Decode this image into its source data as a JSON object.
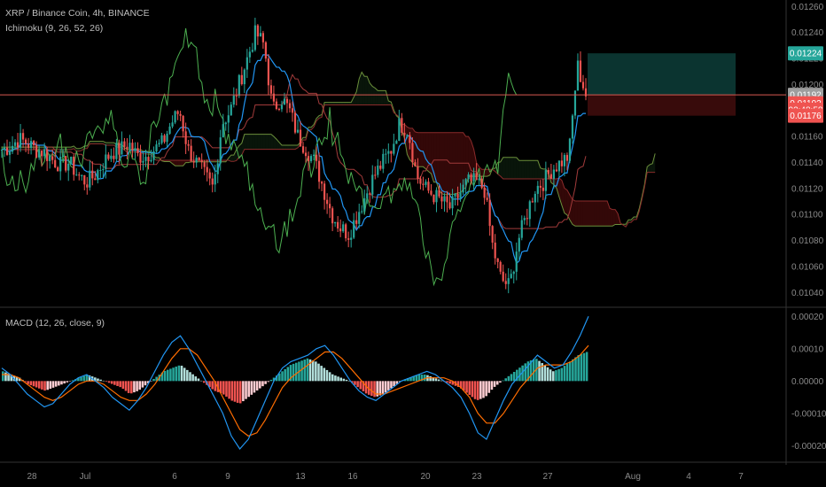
{
  "header": {
    "symbol_line": "XRP / Binance Coin, 4h, BINANCE",
    "ichimoku_label": "Ichimoku (9, 26, 52, 26)",
    "macd_label": "MACD (12, 26, close, 9)"
  },
  "colors": {
    "background": "#000000",
    "up": "#26a69a",
    "down": "#ef5350",
    "tenkan": "#2196f3",
    "kijun": "#a23b3b",
    "chikou": "#4caf50",
    "span_a": "#6b8f3b",
    "span_b": "#8b2b2b",
    "macd_line": "#2196f3",
    "signal_line": "#ff6d00",
    "position_profit": "#0c3a35",
    "position_loss": "#3b0c0c"
  },
  "price_axis": {
    "ticks": [
      "0.01260",
      "0.01240",
      "0.01220",
      "0.01200",
      "0.01180",
      "0.01160",
      "0.01140",
      "0.01120",
      "0.01100",
      "0.01080",
      "0.01060",
      "0.01040"
    ],
    "visible_ticks": [
      "0.01140",
      "0.01120",
      "0.01100",
      "0.01080",
      "0.01060",
      "0.01040"
    ],
    "badges": [
      {
        "text": "0.01224",
        "color": "#26a69a",
        "value": 0.01224
      },
      {
        "text": "0.01192",
        "color": "#9e9e9e",
        "value": 0.01192
      },
      {
        "text": "0.01192",
        "color": "#ef5350",
        "value": 0.011855
      },
      {
        "text": "02:48:58",
        "color": "#ef5350",
        "value": 0.011805
      },
      {
        "text": "0.01176",
        "color": "#ef5350",
        "value": 0.01176
      }
    ]
  },
  "macd_axis": {
    "ticks": [
      "0.00020",
      "0.00010",
      "0.00000",
      "-0.00010",
      "-0.00020"
    ]
  },
  "time_axis": {
    "labels": [
      "28",
      "Jul",
      "6",
      "9",
      "13",
      "16",
      "20",
      "23",
      "27",
      "Aug",
      "4",
      "7"
    ]
  },
  "chart_data": {
    "type": "candlestick",
    "symbol": "XRP / Binance Coin",
    "timeframe": "4h",
    "exchange": "BINANCE",
    "price_range": [
      0.0103,
      0.01265
    ],
    "current_price": 0.01192,
    "position": {
      "entry": 0.01192,
      "target": 0.01224,
      "stop": 0.01176
    },
    "price_path": [
      [
        0.01155,
        0.0115
      ],
      [
        0.0116,
        0.01152
      ],
      [
        0.0117,
        0.01158
      ],
      [
        0.01165,
        0.01155
      ],
      [
        0.0116,
        0.0115
      ],
      [
        0.01155,
        0.01148
      ],
      [
        0.0115,
        0.01142
      ],
      [
        0.01148,
        0.01138
      ],
      [
        0.01152,
        0.0114
      ],
      [
        0.0115,
        0.0113
      ],
      [
        0.01145,
        0.01125
      ],
      [
        0.0115,
        0.0113
      ],
      [
        0.0116,
        0.0114
      ],
      [
        0.01155,
        0.01148
      ],
      [
        0.0116,
        0.0115
      ],
      [
        0.0117,
        0.01155
      ],
      [
        0.0115,
        0.01145
      ],
      [
        0.0114,
        0.01145
      ],
      [
        0.01145,
        0.0115
      ],
      [
        0.0115,
        0.01155
      ],
      [
        0.0116,
        0.0117
      ],
      [
        0.01165,
        0.0118
      ],
      [
        0.0117,
        0.0115
      ],
      [
        0.0115,
        0.0114
      ],
      [
        0.0114,
        0.0113
      ],
      [
        0.0113,
        0.0112
      ],
      [
        0.0116,
        0.0117
      ],
      [
        0.0117,
        0.0118
      ],
      [
        0.0118,
        0.012
      ],
      [
        0.0119,
        0.0122
      ],
      [
        0.0121,
        0.0124
      ],
      [
        0.0122,
        0.0123
      ],
      [
        0.012,
        0.0118
      ],
      [
        0.0118,
        0.0119
      ],
      [
        0.0119,
        0.0118
      ],
      [
        0.0118,
        0.0116
      ],
      [
        0.0116,
        0.0115
      ],
      [
        0.0115,
        0.0114
      ],
      [
        0.0114,
        0.0112
      ],
      [
        0.0112,
        0.011
      ],
      [
        0.011,
        0.0109
      ],
      [
        0.0109,
        0.01085
      ],
      [
        0.01095,
        0.011
      ],
      [
        0.011,
        0.01115
      ],
      [
        0.0111,
        0.0113
      ],
      [
        0.01125,
        0.0114
      ],
      [
        0.01135,
        0.0115
      ],
      [
        0.0115,
        0.0117
      ],
      [
        0.0116,
        0.01165
      ],
      [
        0.0114,
        0.0113
      ],
      [
        0.0113,
        0.0112
      ],
      [
        0.0112,
        0.01115
      ],
      [
        0.01125,
        0.0111
      ],
      [
        0.0111,
        0.01105
      ],
      [
        0.0111,
        0.01115
      ],
      [
        0.01115,
        0.01125
      ],
      [
        0.0112,
        0.01125
      ],
      [
        0.0111,
        0.0112
      ],
      [
        0.0109,
        0.01075
      ],
      [
        0.0107,
        0.0105
      ],
      [
        0.0106,
        0.01045
      ],
      [
        0.0107,
        0.0108
      ],
      [
        0.01085,
        0.011
      ],
      [
        0.011,
        0.0112
      ],
      [
        0.01115,
        0.01125
      ],
      [
        0.0112,
        0.01135
      ],
      [
        0.0113,
        0.0114
      ],
      [
        0.01135,
        0.01145
      ],
      [
        0.0114,
        0.01215
      ],
      [
        0.012,
        0.01192
      ]
    ],
    "macd_range": [
      -0.00024,
      0.00022
    ],
    "macd_histogram": [
      3e-05,
      2e-05,
      1e-05,
      -1e-05,
      -2e-05,
      -3e-05,
      -2e-05,
      -1e-05,
      0.0,
      1e-05,
      2e-05,
      1e-05,
      0.0,
      -1e-05,
      -2e-05,
      -4e-05,
      -3e-05,
      -1e-05,
      1e-05,
      3e-05,
      4e-05,
      5e-05,
      3e-05,
      1e-05,
      -1e-05,
      -3e-05,
      -4e-05,
      -6e-05,
      -7e-05,
      -5e-05,
      -3e-05,
      -1e-05,
      1e-05,
      3e-05,
      5e-05,
      6e-05,
      7e-05,
      6e-05,
      4e-05,
      2e-05,
      1e-05,
      0.0,
      -2e-05,
      -4e-05,
      -5e-05,
      -4e-05,
      -2e-05,
      0.0,
      1e-05,
      2e-05,
      2e-05,
      1e-05,
      0.0,
      -1e-05,
      -2e-05,
      -4e-05,
      -6e-05,
      -5e-05,
      -2e-05,
      0.0,
      2e-05,
      4e-05,
      6e-05,
      7e-05,
      5e-05,
      3e-05,
      4e-05,
      6e-05,
      8e-05,
      9e-05
    ],
    "macd_line": [
      4e-05,
      2e-05,
      -1e-05,
      -4e-05,
      -6e-05,
      -8e-05,
      -7e-05,
      -4e-05,
      -1e-05,
      1e-05,
      2e-05,
      0.0,
      -2e-05,
      -5e-05,
      -7e-05,
      -9e-05,
      -6e-05,
      -2e-05,
      3e-05,
      8e-05,
      0.00012,
      0.00014,
      0.0001,
      5e-05,
      0.0,
      -5e-05,
      -0.0001,
      -0.00017,
      -0.00021,
      -0.00018,
      -0.00012,
      -6e-05,
      0.0,
      4e-05,
      6e-05,
      7e-05,
      8e-05,
      0.0001,
      0.00011,
      8e-05,
      4e-05,
      0.0,
      -3e-05,
      -5e-05,
      -6e-05,
      -4e-05,
      -2e-05,
      0.0,
      1e-05,
      2e-05,
      3e-05,
      2e-05,
      0.0,
      -2e-05,
      -5e-05,
      -0.0001,
      -0.00016,
      -0.00018,
      -0.00012,
      -6e-05,
      -1e-05,
      2e-05,
      5e-05,
      8e-05,
      6e-05,
      4e-05,
      5e-05,
      9e-05,
      0.00014,
      0.0002
    ],
    "signal_line": [
      2e-05,
      2e-05,
      1e-05,
      -1e-05,
      -3e-05,
      -5e-05,
      -6e-05,
      -5e-05,
      -3e-05,
      -1e-05,
      0.0,
      0.0,
      -1e-05,
      -3e-05,
      -5e-05,
      -6e-05,
      -6e-05,
      -4e-05,
      -1e-05,
      3e-05,
      7e-05,
      0.0001,
      0.0001,
      8e-05,
      4e-05,
      0.0,
      -5e-05,
      -0.0001,
      -0.00015,
      -0.00017,
      -0.00016,
      -0.00012,
      -7e-05,
      -2e-05,
      1e-05,
      3e-05,
      5e-05,
      7e-05,
      9e-05,
      9e-05,
      7e-05,
      4e-05,
      1e-05,
      -2e-05,
      -4e-05,
      -4e-05,
      -3e-05,
      -2e-05,
      -1e-05,
      0.0,
      1e-05,
      1e-05,
      1e-05,
      0.0,
      -2e-05,
      -5e-05,
      -0.0001,
      -0.00013,
      -0.00013,
      -0.0001,
      -6e-05,
      -2e-05,
      1e-05,
      4e-05,
      5e-05,
      5e-05,
      5e-05,
      6e-05,
      8e-05,
      0.00011
    ]
  }
}
